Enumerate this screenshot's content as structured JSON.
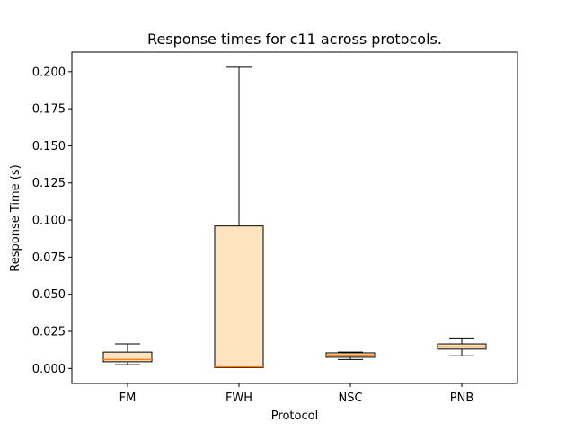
{
  "chart_data": {
    "type": "boxplot",
    "title": "Response times for c11 across protocols.",
    "xlabel": "Protocol",
    "ylabel": "Response Time (s)",
    "categories": [
      "FM",
      "FWH",
      "NSC",
      "PNB"
    ],
    "ylim": [
      -0.0101,
      0.2132
    ],
    "yticks": [
      0.0,
      0.025,
      0.05,
      0.075,
      0.1,
      0.125,
      0.15,
      0.175,
      0.2
    ],
    "ytick_labels": [
      "0.000",
      "0.025",
      "0.050",
      "0.075",
      "0.100",
      "0.125",
      "0.150",
      "0.175",
      "0.200"
    ],
    "grid": false,
    "boxes": [
      {
        "label": "FM",
        "whisker_low": 0.0025,
        "q1": 0.0045,
        "median": 0.006,
        "q3": 0.011,
        "whisker_high": 0.0165
      },
      {
        "label": "FWH",
        "whisker_low": 0.0005,
        "q1": 0.0005,
        "median": 0.001,
        "q3": 0.096,
        "whisker_high": 0.203
      },
      {
        "label": "NSC",
        "whisker_low": 0.006,
        "q1": 0.0075,
        "median": 0.009,
        "q3": 0.0105,
        "whisker_high": 0.011
      },
      {
        "label": "PNB",
        "whisker_low": 0.0085,
        "q1": 0.013,
        "median": 0.0145,
        "q3": 0.0165,
        "whisker_high": 0.0205
      }
    ],
    "colors": {
      "box_fill": "#ffe4bf",
      "box_edge": "#000000",
      "median": "#ff7f0e",
      "whisker": "#000000",
      "axes": "#000000"
    }
  }
}
